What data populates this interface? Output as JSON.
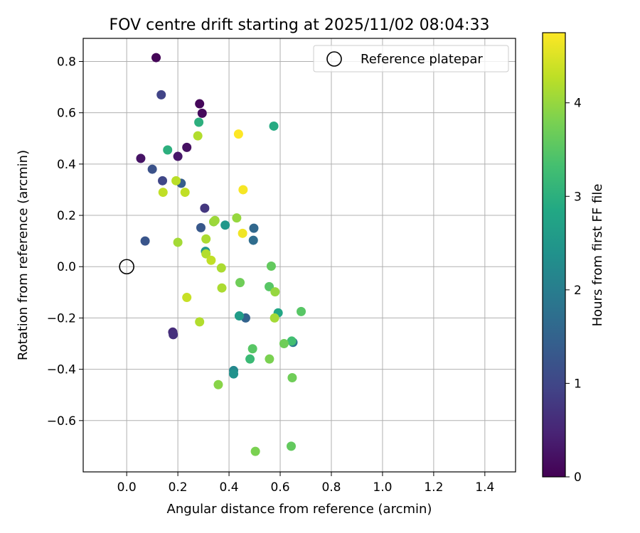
{
  "chart_data": {
    "type": "scatter",
    "title": "FOV centre drift starting at 2025/11/02 08:04:33",
    "xlabel": "Angular distance from reference (arcmin)",
    "ylabel": "Rotation from reference (arcmin)",
    "xlim": [
      -0.17,
      1.52
    ],
    "ylim": [
      -0.8,
      0.89
    ],
    "xticks": [
      0.0,
      0.2,
      0.4,
      0.6,
      0.8,
      1.0,
      1.2,
      1.4
    ],
    "xtick_labels": [
      "0.0",
      "0.2",
      "0.4",
      "0.6",
      "0.8",
      "1.0",
      "1.2",
      "1.4"
    ],
    "yticks": [
      -0.6,
      -0.4,
      -0.2,
      0.0,
      0.2,
      0.4,
      0.6,
      0.8
    ],
    "ytick_labels": [
      "−0.6",
      "−0.4",
      "−0.2",
      "0.0",
      "0.2",
      "0.4",
      "0.6",
      "0.8"
    ],
    "grid": true,
    "legend": {
      "location": "top-right",
      "entries": [
        "Reference platepar"
      ]
    },
    "reference_point": {
      "x": 0.0,
      "y": 0.0,
      "label": "Reference platepar"
    },
    "colorbar": {
      "label": "Hours from first FF file",
      "range": [
        0,
        4.75
      ],
      "ticks": [
        0,
        1,
        2,
        3,
        4
      ],
      "tick_labels": [
        "0",
        "1",
        "2",
        "3",
        "4"
      ],
      "colormap": "viridis"
    },
    "series": [
      {
        "name": "FOV centre",
        "points": [
          {
            "x": 0.115,
            "y": 0.815,
            "t": 0.05
          },
          {
            "x": 0.285,
            "y": 0.635,
            "t": 0.08
          },
          {
            "x": 0.295,
            "y": 0.598,
            "t": 0.12
          },
          {
            "x": 0.235,
            "y": 0.465,
            "t": 0.2
          },
          {
            "x": 0.055,
            "y": 0.422,
            "t": 0.25
          },
          {
            "x": 0.2,
            "y": 0.43,
            "t": 0.3
          },
          {
            "x": 0.18,
            "y": -0.255,
            "t": 0.6
          },
          {
            "x": 0.182,
            "y": -0.265,
            "t": 0.65
          },
          {
            "x": 0.305,
            "y": 0.228,
            "t": 0.75
          },
          {
            "x": 0.135,
            "y": 0.67,
            "t": 0.95
          },
          {
            "x": 0.14,
            "y": 0.335,
            "t": 1.0
          },
          {
            "x": 0.1,
            "y": 0.38,
            "t": 1.2
          },
          {
            "x": 0.072,
            "y": 0.1,
            "t": 1.25
          },
          {
            "x": 0.29,
            "y": 0.152,
            "t": 1.3
          },
          {
            "x": 0.213,
            "y": 0.325,
            "t": 1.4
          },
          {
            "x": 0.465,
            "y": -0.2,
            "t": 1.5
          },
          {
            "x": 0.497,
            "y": 0.15,
            "t": 1.6
          },
          {
            "x": 0.495,
            "y": 0.103,
            "t": 1.7
          },
          {
            "x": 0.65,
            "y": -0.295,
            "t": 1.9
          },
          {
            "x": 0.418,
            "y": -0.405,
            "t": 2.2
          },
          {
            "x": 0.418,
            "y": -0.418,
            "t": 2.4
          },
          {
            "x": 0.385,
            "y": 0.162,
            "t": 2.5
          },
          {
            "x": 0.308,
            "y": 0.06,
            "t": 2.5
          },
          {
            "x": 0.44,
            "y": -0.192,
            "t": 2.6
          },
          {
            "x": 0.592,
            "y": -0.18,
            "t": 2.8
          },
          {
            "x": 0.575,
            "y": 0.548,
            "t": 2.9
          },
          {
            "x": 0.16,
            "y": 0.455,
            "t": 3.0
          },
          {
            "x": 0.282,
            "y": 0.563,
            "t": 3.0
          },
          {
            "x": 0.482,
            "y": -0.36,
            "t": 3.2
          },
          {
            "x": 0.645,
            "y": -0.29,
            "t": 3.3
          },
          {
            "x": 0.492,
            "y": -0.32,
            "t": 3.5
          },
          {
            "x": 0.557,
            "y": -0.078,
            "t": 3.5
          },
          {
            "x": 0.565,
            "y": 0.002,
            "t": 3.6
          },
          {
            "x": 0.682,
            "y": -0.175,
            "t": 3.5
          },
          {
            "x": 0.643,
            "y": -0.7,
            "t": 3.6
          },
          {
            "x": 0.647,
            "y": -0.433,
            "t": 3.7
          },
          {
            "x": 0.443,
            "y": -0.062,
            "t": 3.7
          },
          {
            "x": 0.615,
            "y": -0.3,
            "t": 3.7
          },
          {
            "x": 0.558,
            "y": -0.36,
            "t": 3.8
          },
          {
            "x": 0.503,
            "y": -0.72,
            "t": 3.8
          },
          {
            "x": 0.358,
            "y": -0.46,
            "t": 3.9
          },
          {
            "x": 0.58,
            "y": -0.098,
            "t": 4.0
          },
          {
            "x": 0.43,
            "y": 0.19,
            "t": 4.0
          },
          {
            "x": 0.34,
            "y": 0.175,
            "t": 4.0
          },
          {
            "x": 0.345,
            "y": 0.18,
            "t": 4.05
          },
          {
            "x": 0.578,
            "y": -0.2,
            "t": 4.1
          },
          {
            "x": 0.2,
            "y": 0.095,
            "t": 4.1
          },
          {
            "x": 0.37,
            "y": -0.005,
            "t": 4.15
          },
          {
            "x": 0.31,
            "y": 0.108,
            "t": 4.15
          },
          {
            "x": 0.372,
            "y": -0.083,
            "t": 4.15
          },
          {
            "x": 0.285,
            "y": -0.215,
            "t": 4.2
          },
          {
            "x": 0.31,
            "y": 0.05,
            "t": 4.2
          },
          {
            "x": 0.278,
            "y": 0.51,
            "t": 4.2
          },
          {
            "x": 0.193,
            "y": 0.335,
            "t": 4.25
          },
          {
            "x": 0.228,
            "y": 0.29,
            "t": 4.3
          },
          {
            "x": 0.142,
            "y": 0.29,
            "t": 4.3
          },
          {
            "x": 0.33,
            "y": 0.025,
            "t": 4.3
          },
          {
            "x": 0.235,
            "y": -0.12,
            "t": 4.35
          },
          {
            "x": 0.453,
            "y": 0.13,
            "t": 4.65
          },
          {
            "x": 0.455,
            "y": 0.3,
            "t": 4.7
          },
          {
            "x": 0.437,
            "y": 0.517,
            "t": 4.75
          }
        ]
      }
    ]
  }
}
